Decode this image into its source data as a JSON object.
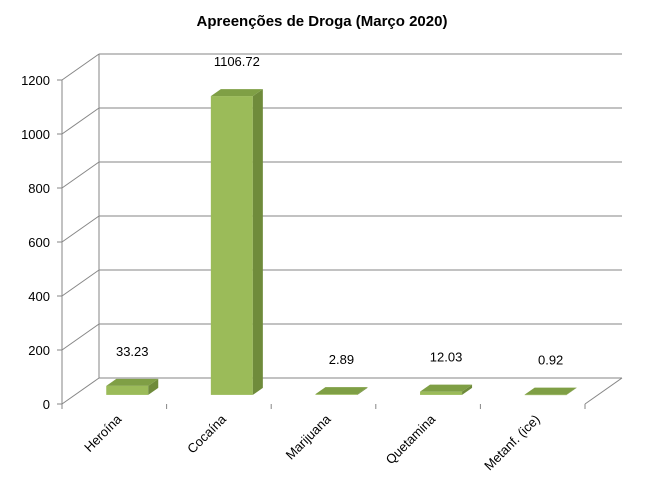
{
  "chart_data": {
    "type": "bar",
    "title": "Apreenções de Droga (Março 2020)",
    "xlabel": "",
    "ylabel": "",
    "categories": [
      "Heroína",
      "Cocaína",
      "Marijuana",
      "Quetamina",
      "Metanf. (ice)"
    ],
    "values": [
      33.23,
      1106.72,
      2.89,
      12.03,
      0.92
    ],
    "data_labels": [
      "33.23",
      "1106.72",
      "2.89",
      "12.03",
      "0.92"
    ],
    "ylim": [
      0,
      1200
    ],
    "yticks": [
      "0",
      "200",
      "400",
      "600",
      "800",
      "1000",
      "1200"
    ],
    "grid": true,
    "legend": "none",
    "three_d": true,
    "colors": {
      "bar_front": "#9BBB59",
      "bar_side": "#6F8B3B",
      "bar_top": "#7F9F45",
      "grid": "#868686",
      "axis": "#868686"
    }
  }
}
